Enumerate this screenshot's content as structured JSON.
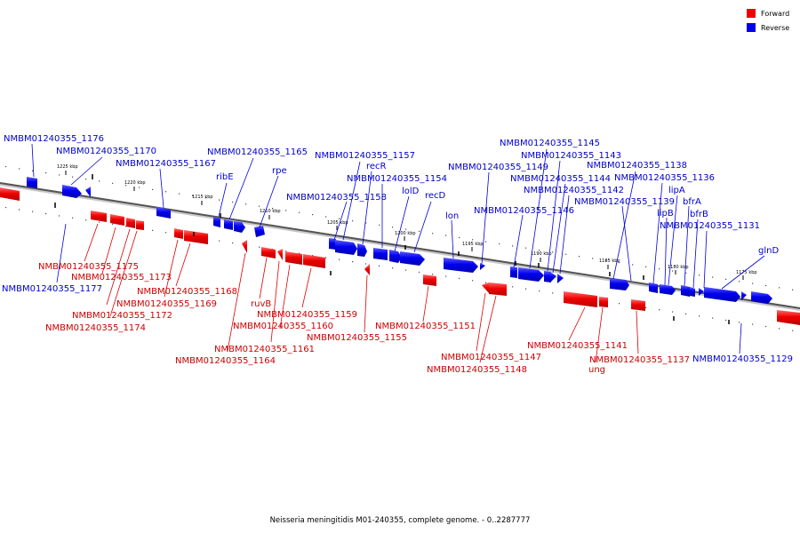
{
  "legend": {
    "forward_label": "Forward",
    "reverse_label": "Reverse",
    "forward_color": "#ff0000",
    "reverse_color": "#0000ff"
  },
  "caption": "Neisseria meningitidis M01-240355, complete genome. - 0..2287777",
  "scale": {
    "tick_labels": [
      "1225 kbp",
      "1220 kbp",
      "1215 kbp",
      "1210 kbp",
      "1205 kbp",
      "1200 kbp",
      "1195 kbp",
      "1190 kbp",
      "1185 kbp",
      "1180 kbp",
      "1175 kbp"
    ]
  },
  "genes": [
    {
      "label": "NMBM01240355_1177",
      "strand": "reverse"
    },
    {
      "label": "NMBM01240355_1176",
      "strand": "reverse"
    },
    {
      "label": "NMBM01240355_1175",
      "strand": "forward"
    },
    {
      "label": "NMBM01240355_1174",
      "strand": "forward"
    },
    {
      "label": "NMBM01240355_1173",
      "strand": "forward"
    },
    {
      "label": "NMBM01240355_1172",
      "strand": "forward"
    },
    {
      "label": "NMBM01240355_1170",
      "strand": "reverse"
    },
    {
      "label": "NMBM01240355_1169",
      "strand": "forward"
    },
    {
      "label": "NMBM01240355_1168",
      "strand": "forward"
    },
    {
      "label": "NMBM01240355_1167",
      "strand": "reverse"
    },
    {
      "label": "ribE",
      "strand": "reverse"
    },
    {
      "label": "NMBM01240355_1165",
      "strand": "reverse"
    },
    {
      "label": "NMBM01240355_1164",
      "strand": "forward"
    },
    {
      "label": "rpe",
      "strand": "reverse"
    },
    {
      "label": "ruvB",
      "strand": "forward"
    },
    {
      "label": "NMBM01240355_1161",
      "strand": "forward"
    },
    {
      "label": "NMBM01240355_1160",
      "strand": "forward"
    },
    {
      "label": "NMBM01240355_1159",
      "strand": "forward"
    },
    {
      "label": "NMBM01240355_1158",
      "strand": "reverse"
    },
    {
      "label": "NMBM01240355_1157",
      "strand": "reverse"
    },
    {
      "label": "recR",
      "strand": "reverse"
    },
    {
      "label": "NMBM01240355_1155",
      "strand": "forward"
    },
    {
      "label": "NMBM01240355_1154",
      "strand": "reverse"
    },
    {
      "label": "lolD",
      "strand": "reverse"
    },
    {
      "label": "recD",
      "strand": "reverse"
    },
    {
      "label": "NMBM01240355_1151",
      "strand": "forward"
    },
    {
      "label": "lon",
      "strand": "reverse"
    },
    {
      "label": "NMBM01240355_1149",
      "strand": "reverse"
    },
    {
      "label": "NMBM01240355_1148",
      "strand": "forward"
    },
    {
      "label": "NMBM01240355_1147",
      "strand": "forward"
    },
    {
      "label": "NMBM01240355_1146",
      "strand": "reverse"
    },
    {
      "label": "NMBM01240355_1145",
      "strand": "reverse"
    },
    {
      "label": "NMBM01240355_1144",
      "strand": "reverse"
    },
    {
      "label": "NMBM01240355_1143",
      "strand": "reverse"
    },
    {
      "label": "NMBM01240355_1142",
      "strand": "reverse"
    },
    {
      "label": "NMBM01240355_1141",
      "strand": "forward"
    },
    {
      "label": "ung",
      "strand": "forward"
    },
    {
      "label": "NMBM01240355_1139",
      "strand": "reverse"
    },
    {
      "label": "NMBM01240355_1138",
      "strand": "reverse"
    },
    {
      "label": "NMBM01240355_1137",
      "strand": "forward"
    },
    {
      "label": "lipB",
      "strand": "reverse"
    },
    {
      "label": "NMBM01240355_1136",
      "strand": "reverse"
    },
    {
      "label": "lipA",
      "strand": "reverse"
    },
    {
      "label": "bfrA",
      "strand": "reverse"
    },
    {
      "label": "bfrB",
      "strand": "reverse"
    },
    {
      "label": "NMBM01240355_1131",
      "strand": "reverse"
    },
    {
      "label": "glnD",
      "strand": "reverse"
    },
    {
      "label": "NMBM01240355_1129",
      "strand": "reverse"
    }
  ]
}
